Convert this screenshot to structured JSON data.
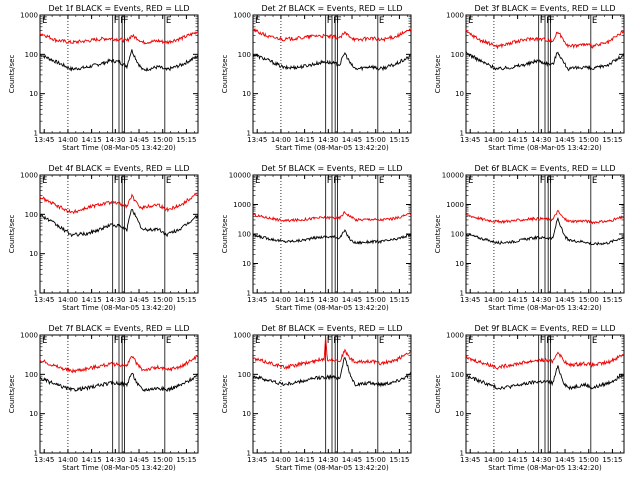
{
  "colors": {
    "events": "#000000",
    "lld": "#ee0000",
    "axis": "#000000",
    "background": "#ffffff"
  },
  "xlabel": "Start Time (08-Mar-05 13:42:20)",
  "ylabel": "Counts/sec",
  "x_ticks": [
    "13:45",
    "14:00",
    "14:15",
    "14:30",
    "14:45",
    "15:00",
    "15:15"
  ],
  "x_tick_minutes": [
    2.67,
    17.67,
    32.67,
    47.67,
    62.67,
    77.67,
    92.67
  ],
  "x_range_minutes": [
    0,
    100
  ],
  "y_ticks_short": [
    "1",
    "10",
    "100",
    "1000"
  ],
  "y_ticks_long": [
    "1",
    "10",
    "100",
    "1000",
    "10000"
  ],
  "flag_lines": [
    {
      "t": 17.67,
      "style": "dotted",
      "label": ""
    },
    {
      "t": 46.0,
      "style": "solid",
      "label": "F"
    },
    {
      "t": 50.0,
      "style": "solid",
      "label": "F"
    },
    {
      "t": 52.0,
      "style": "solid",
      "label": "F"
    },
    {
      "t": 53.5,
      "style": "solid",
      "label": ""
    },
    {
      "t": 79.0,
      "style": "solid",
      "label": "E"
    }
  ],
  "chart_data": [
    {
      "type": "line",
      "title": "Det 1f BLACK = Events, RED = LLD",
      "ylim": [
        1,
        1000
      ],
      "y_scale": "log",
      "series": [
        {
          "name": "Events",
          "t": [
            0,
            10,
            20,
            30,
            40,
            45,
            50,
            55,
            58,
            62,
            65,
            75,
            80,
            90,
            100
          ],
          "values": [
            100,
            65,
            42,
            47,
            60,
            70,
            64,
            50,
            130,
            60,
            40,
            48,
            40,
            55,
            90
          ]
        },
        {
          "name": "LLD",
          "t": [
            0,
            10,
            20,
            30,
            40,
            45,
            50,
            55,
            58,
            62,
            65,
            75,
            80,
            90,
            100
          ],
          "values": [
            350,
            230,
            200,
            220,
            250,
            250,
            240,
            220,
            300,
            250,
            200,
            220,
            200,
            260,
            380
          ]
        }
      ]
    },
    {
      "type": "line",
      "title": "Det 2f BLACK = Events, RED = LLD",
      "ylim": [
        1,
        1000
      ],
      "y_scale": "log",
      "series": [
        {
          "name": "Events",
          "t": [
            0,
            10,
            20,
            30,
            40,
            45,
            50,
            55,
            58,
            62,
            65,
            75,
            80,
            90,
            100
          ],
          "values": [
            100,
            70,
            45,
            48,
            58,
            65,
            60,
            55,
            110,
            55,
            42,
            50,
            42,
            55,
            90
          ]
        },
        {
          "name": "LLD",
          "t": [
            0,
            10,
            20,
            30,
            40,
            45,
            50,
            55,
            58,
            62,
            65,
            75,
            80,
            90,
            100
          ],
          "values": [
            420,
            280,
            240,
            260,
            300,
            290,
            280,
            260,
            350,
            280,
            230,
            260,
            230,
            280,
            420
          ]
        }
      ]
    },
    {
      "type": "line",
      "title": "Det 3f BLACK = Events, RED = LLD",
      "ylim": [
        1,
        1000
      ],
      "y_scale": "log",
      "series": [
        {
          "name": "Events",
          "t": [
            0,
            10,
            20,
            30,
            40,
            45,
            50,
            55,
            58,
            62,
            65,
            75,
            80,
            90,
            100
          ],
          "values": [
            110,
            65,
            42,
            48,
            58,
            70,
            60,
            55,
            120,
            60,
            42,
            48,
            42,
            55,
            95
          ]
        },
        {
          "name": "LLD",
          "t": [
            0,
            10,
            20,
            30,
            40,
            45,
            50,
            55,
            58,
            62,
            65,
            75,
            80,
            90,
            100
          ],
          "values": [
            380,
            220,
            160,
            200,
            250,
            250,
            240,
            220,
            380,
            230,
            160,
            180,
            160,
            200,
            400
          ]
        }
      ]
    },
    {
      "type": "line",
      "title": "Det 4f BLACK = Events, RED = LLD",
      "ylim": [
        1,
        1000
      ],
      "y_scale": "log",
      "series": [
        {
          "name": "Events",
          "t": [
            0,
            10,
            20,
            30,
            40,
            45,
            50,
            55,
            58,
            62,
            65,
            75,
            80,
            90,
            100
          ],
          "values": [
            100,
            55,
            30,
            32,
            45,
            55,
            50,
            40,
            150,
            65,
            40,
            42,
            30,
            45,
            95
          ]
        },
        {
          "name": "LLD",
          "t": [
            0,
            10,
            20,
            30,
            40,
            45,
            50,
            55,
            58,
            62,
            65,
            75,
            80,
            90,
            100
          ],
          "values": [
            280,
            170,
            110,
            150,
            190,
            200,
            190,
            160,
            300,
            170,
            150,
            180,
            130,
            180,
            360
          ]
        }
      ]
    },
    {
      "type": "line",
      "title": "Det 5f BLACK = Events, RED = LLD",
      "ylim": [
        1,
        10000
      ],
      "y_scale": "log",
      "series": [
        {
          "name": "Events",
          "t": [
            0,
            10,
            20,
            30,
            40,
            45,
            50,
            55,
            58,
            62,
            65,
            75,
            80,
            90,
            100
          ],
          "values": [
            90,
            70,
            55,
            60,
            75,
            80,
            80,
            75,
            130,
            60,
            50,
            55,
            55,
            65,
            95
          ]
        },
        {
          "name": "LLD",
          "t": [
            0,
            10,
            20,
            30,
            40,
            45,
            50,
            55,
            58,
            62,
            65,
            75,
            80,
            90,
            100
          ],
          "values": [
            450,
            350,
            280,
            300,
            350,
            360,
            360,
            350,
            550,
            380,
            300,
            320,
            300,
            340,
            480
          ]
        }
      ]
    },
    {
      "type": "line",
      "title": "Det 6f BLACK = Events, RED = LLD",
      "ylim": [
        1,
        10000
      ],
      "y_scale": "log",
      "series": [
        {
          "name": "Events",
          "t": [
            0,
            10,
            20,
            30,
            40,
            45,
            50,
            55,
            58,
            62,
            65,
            75,
            80,
            90,
            100
          ],
          "values": [
            100,
            70,
            50,
            55,
            70,
            75,
            75,
            70,
            350,
            90,
            60,
            55,
            45,
            50,
            80
          ]
        },
        {
          "name": "LLD",
          "t": [
            0,
            10,
            20,
            30,
            40,
            45,
            50,
            55,
            58,
            62,
            65,
            75,
            80,
            90,
            100
          ],
          "values": [
            450,
            320,
            260,
            280,
            320,
            330,
            330,
            310,
            600,
            330,
            270,
            280,
            250,
            270,
            380
          ]
        }
      ]
    },
    {
      "type": "line",
      "title": "Det 7f BLACK = Events, RED = LLD",
      "ylim": [
        1,
        1000
      ],
      "y_scale": "log",
      "series": [
        {
          "name": "Events",
          "t": [
            0,
            10,
            20,
            30,
            40,
            45,
            50,
            55,
            58,
            62,
            65,
            75,
            80,
            90,
            100
          ],
          "values": [
            80,
            55,
            40,
            45,
            55,
            60,
            60,
            55,
            110,
            55,
            40,
            45,
            40,
            55,
            95
          ]
        },
        {
          "name": "LLD",
          "t": [
            0,
            10,
            20,
            30,
            40,
            45,
            50,
            55,
            58,
            62,
            65,
            75,
            80,
            90,
            100
          ],
          "values": [
            230,
            160,
            120,
            140,
            170,
            180,
            180,
            160,
            300,
            170,
            130,
            150,
            130,
            160,
            300
          ]
        }
      ]
    },
    {
      "type": "line",
      "title": "Det 8f BLACK = Events, RED = LLD",
      "ylim": [
        1,
        1000
      ],
      "y_scale": "log",
      "series": [
        {
          "name": "Events",
          "t": [
            0,
            10,
            20,
            30,
            40,
            45,
            50,
            55,
            58,
            62,
            65,
            75,
            80,
            90,
            100
          ],
          "values": [
            90,
            70,
            55,
            65,
            80,
            85,
            85,
            80,
            300,
            80,
            55,
            60,
            55,
            65,
            100
          ]
        },
        {
          "name": "LLD",
          "t": [
            0,
            10,
            20,
            30,
            40,
            45,
            46,
            47,
            50,
            55,
            58,
            62,
            65,
            75,
            80,
            90,
            100
          ],
          "values": [
            250,
            200,
            150,
            180,
            220,
            250,
            1000,
            240,
            240,
            220,
            400,
            240,
            200,
            220,
            190,
            220,
            400
          ]
        }
      ]
    },
    {
      "type": "line",
      "title": "Det 9f BLACK = Events, RED = LLD",
      "ylim": [
        1,
        1000
      ],
      "y_scale": "log",
      "series": [
        {
          "name": "Events",
          "t": [
            0,
            10,
            20,
            30,
            40,
            45,
            50,
            55,
            58,
            62,
            65,
            75,
            80,
            90,
            100
          ],
          "values": [
            90,
            65,
            45,
            50,
            60,
            65,
            65,
            60,
            160,
            60,
            45,
            55,
            45,
            60,
            100
          ]
        },
        {
          "name": "LLD",
          "t": [
            0,
            10,
            20,
            30,
            40,
            45,
            50,
            55,
            58,
            62,
            65,
            75,
            80,
            90,
            100
          ],
          "values": [
            260,
            200,
            150,
            180,
            210,
            230,
            230,
            210,
            380,
            220,
            170,
            190,
            170,
            200,
            330
          ]
        }
      ]
    }
  ]
}
